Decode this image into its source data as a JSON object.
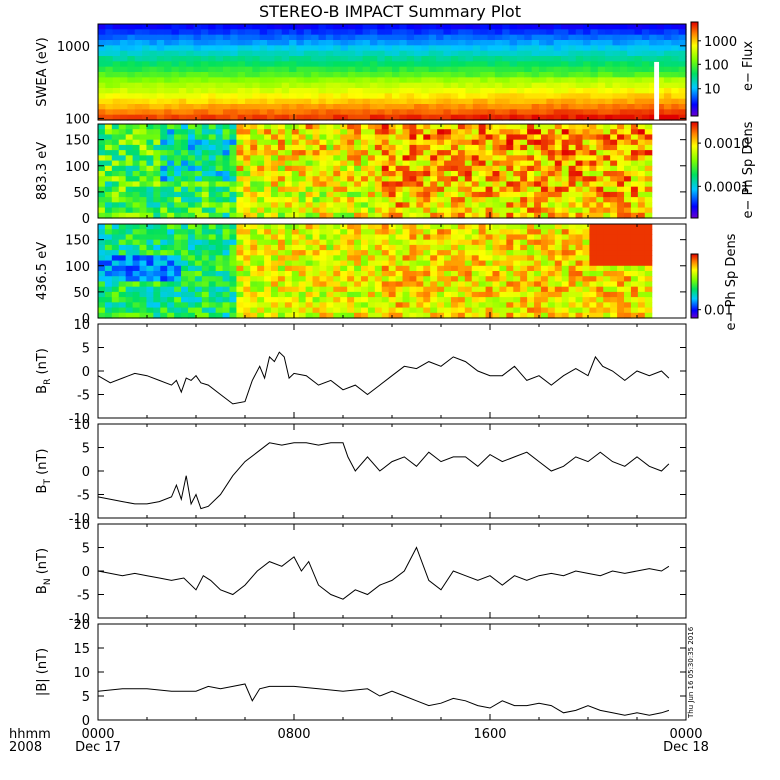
{
  "title": "STEREO-B IMPACT Summary Plot",
  "timestamp_label": "Thu Jun 16 05:30:35 2016",
  "footer": {
    "row1_label": "hhmm",
    "row2_label": "2008",
    "ticks": [
      {
        "x": 0,
        "top": "0000",
        "bottom": "Dec 17"
      },
      {
        "x": 8,
        "top": "0800",
        "bottom": ""
      },
      {
        "x": 16,
        "top": "1600",
        "bottom": ""
      },
      {
        "x": 24,
        "top": "0000",
        "bottom": "Dec 18"
      }
    ]
  },
  "colors": {
    "axis": "#000000",
    "line": "#000000",
    "gap": "#ffffff"
  },
  "chart_data": [
    {
      "type": "heatmap",
      "id": "swea",
      "ylabel": "SWEA (eV)",
      "yscale": "log",
      "ylim": [
        95,
        2000
      ],
      "yticks": [
        {
          "v": 100,
          "label": "100"
        },
        {
          "v": 1000,
          "label": "1000"
        }
      ],
      "colorbar_label": "e− Flux",
      "colorbar_ticks": [
        {
          "f": 0.8,
          "label": "1000"
        },
        {
          "f": 0.55,
          "label": "100"
        },
        {
          "f": 0.29,
          "label": "10"
        }
      ],
      "xlim": [
        0,
        24
      ],
      "data_end": 24,
      "gap": [
        22.7,
        22.9
      ]
    },
    {
      "type": "heatmap",
      "id": "pad883",
      "ylabel": "883.3 eV",
      "yscale": "linear",
      "ylim": [
        0,
        180
      ],
      "yticks": [
        {
          "v": 0,
          "label": "0"
        },
        {
          "v": 50,
          "label": "50"
        },
        {
          "v": 100,
          "label": "100"
        },
        {
          "v": 150,
          "label": "150"
        }
      ],
      "colorbar_label": "e− Ph Sp Dens",
      "colorbar_ticks": [
        {
          "f": 0.78,
          "label": "0.0010"
        },
        {
          "f": 0.33,
          "label": "0.0001"
        }
      ],
      "xlim": [
        0,
        24
      ],
      "data_end": 22.6
    },
    {
      "type": "heatmap",
      "id": "pad436",
      "ylabel": "436.5 eV",
      "yscale": "linear",
      "ylim": [
        0,
        180
      ],
      "yticks": [
        {
          "v": 0,
          "label": "0"
        },
        {
          "v": 50,
          "label": "50"
        },
        {
          "v": 100,
          "label": "100"
        },
        {
          "v": 150,
          "label": "150"
        }
      ],
      "colorbar_label": "e− Ph Sp Dens",
      "colorbar_ticks": [
        {
          "f": 0.13,
          "label": "0.01"
        }
      ],
      "xlim": [
        0,
        24
      ],
      "data_end": 22.6
    },
    {
      "type": "line",
      "id": "br",
      "ylabel": "B",
      "ylabel_sub": "R",
      "ylabel_unit": "(nT)",
      "ylim": [
        -10,
        10
      ],
      "yticks": [
        -10,
        -5,
        0,
        5,
        10
      ],
      "xlim": [
        0,
        24
      ],
      "x": [
        0,
        0.5,
        1,
        1.5,
        2,
        2.5,
        3,
        3.2,
        3.4,
        3.6,
        3.8,
        4,
        4.2,
        4.5,
        5,
        5.5,
        6,
        6.3,
        6.6,
        6.8,
        7,
        7.2,
        7.4,
        7.6,
        7.8,
        8,
        8.5,
        9,
        9.5,
        10,
        10.5,
        11,
        11.5,
        12,
        12.5,
        13,
        13.5,
        14,
        14.5,
        15,
        15.5,
        16,
        16.5,
        17,
        17.5,
        18,
        18.5,
        19,
        19.5,
        20,
        20.3,
        20.6,
        21,
        21.5,
        22,
        22.5,
        23,
        23.3
      ],
      "y": [
        -1,
        -2.5,
        -1.5,
        -0.5,
        -1,
        -2,
        -3,
        -2,
        -4.5,
        -1.5,
        -2,
        -1,
        -2.5,
        -3,
        -5,
        -7,
        -6.5,
        -2,
        1,
        -1.5,
        3,
        2,
        4,
        3,
        -1.5,
        -0.5,
        -1,
        -3,
        -2,
        -4,
        -3,
        -5,
        -3,
        -1,
        1,
        0.5,
        2,
        1,
        3,
        2,
        0,
        -1,
        -1,
        1,
        -2,
        -1,
        -3,
        -1,
        0.5,
        -1,
        3,
        1,
        0,
        -2,
        0,
        -1,
        0,
        -1.5
      ]
    },
    {
      "type": "line",
      "id": "bt",
      "ylabel": "B",
      "ylabel_sub": "T",
      "ylabel_unit": "(nT)",
      "ylim": [
        -10,
        10
      ],
      "yticks": [
        -10,
        -5,
        0,
        5,
        10
      ],
      "xlim": [
        0,
        24
      ],
      "x": [
        0,
        0.5,
        1,
        1.5,
        2,
        2.5,
        3,
        3.2,
        3.4,
        3.6,
        3.8,
        4,
        4.2,
        4.5,
        5,
        5.5,
        6,
        6.5,
        7,
        7.5,
        8,
        8.5,
        9,
        9.5,
        10,
        10.2,
        10.5,
        11,
        11.5,
        12,
        12.5,
        13,
        13.5,
        14,
        14.5,
        15,
        15.5,
        16,
        16.5,
        17,
        17.5,
        18,
        18.5,
        19,
        19.5,
        20,
        20.5,
        21,
        21.5,
        22,
        22.5,
        23,
        23.3
      ],
      "y": [
        -5.5,
        -6,
        -6.5,
        -7,
        -7,
        -6.5,
        -5.5,
        -3,
        -6,
        -1,
        -7,
        -5,
        -8,
        -7.5,
        -5,
        -1,
        2,
        4,
        6,
        5.5,
        6,
        6,
        5.5,
        6,
        6,
        3,
        0,
        3,
        0,
        2,
        3,
        1,
        4,
        2,
        3,
        3,
        1,
        3.5,
        2,
        3,
        4,
        2,
        0,
        1,
        3,
        2,
        4,
        2,
        1,
        3,
        1,
        0,
        1.5
      ]
    },
    {
      "type": "line",
      "id": "bn",
      "ylabel": "B",
      "ylabel_sub": "N",
      "ylabel_unit": "(nT)",
      "ylim": [
        -10,
        10
      ],
      "yticks": [
        -10,
        -5,
        0,
        5,
        10
      ],
      "xlim": [
        0,
        24
      ],
      "x": [
        0,
        0.5,
        1,
        1.5,
        2,
        2.5,
        3,
        3.5,
        4,
        4.3,
        4.6,
        5,
        5.5,
        6,
        6.5,
        7,
        7.5,
        8,
        8.3,
        8.6,
        9,
        9.5,
        10,
        10.5,
        11,
        11.5,
        12,
        12.5,
        13,
        13.5,
        14,
        14.5,
        15,
        15.5,
        16,
        16.5,
        17,
        17.5,
        18,
        18.5,
        19,
        19.5,
        20,
        20.5,
        21,
        21.5,
        22,
        22.5,
        23,
        23.3
      ],
      "y": [
        0,
        -0.5,
        -1,
        -0.5,
        -1,
        -1.5,
        -2,
        -1.5,
        -4,
        -1,
        -2,
        -4,
        -5,
        -3,
        0,
        2,
        1,
        3,
        0,
        2,
        -3,
        -5,
        -6,
        -4,
        -5,
        -3,
        -2,
        0,
        5,
        -2,
        -4,
        0,
        -1,
        -2,
        -1,
        -3,
        -1,
        -2,
        -1,
        -0.5,
        -1,
        0,
        -0.5,
        -1,
        0,
        -0.5,
        0,
        0.5,
        0,
        1
      ]
    },
    {
      "type": "line",
      "id": "bmag",
      "ylabel": "|B| (nT)",
      "ylim": [
        0,
        20
      ],
      "yticks": [
        0,
        5,
        10,
        15,
        20
      ],
      "xlim": [
        0,
        24
      ],
      "x": [
        0,
        1,
        2,
        3,
        4,
        4.5,
        5,
        5.5,
        6,
        6.3,
        6.6,
        7,
        8,
        9,
        10,
        11,
        11.5,
        12,
        12.5,
        13,
        13.5,
        14,
        14.5,
        15,
        15.5,
        16,
        16.5,
        17,
        17.5,
        18,
        18.5,
        19,
        19.5,
        20,
        20.5,
        21,
        21.5,
        22,
        22.5,
        23,
        23.3
      ],
      "y": [
        6,
        6.5,
        6.5,
        6,
        6,
        7,
        6.5,
        7,
        7.5,
        4,
        6.5,
        7,
        7,
        6.5,
        6,
        6.5,
        5,
        6,
        5,
        4,
        3,
        3.5,
        4.5,
        4,
        3,
        2.5,
        4,
        3,
        3,
        3.5,
        3,
        1.5,
        2,
        3,
        2,
        1.5,
        1,
        1.5,
        1,
        1.5,
        2
      ]
    }
  ]
}
